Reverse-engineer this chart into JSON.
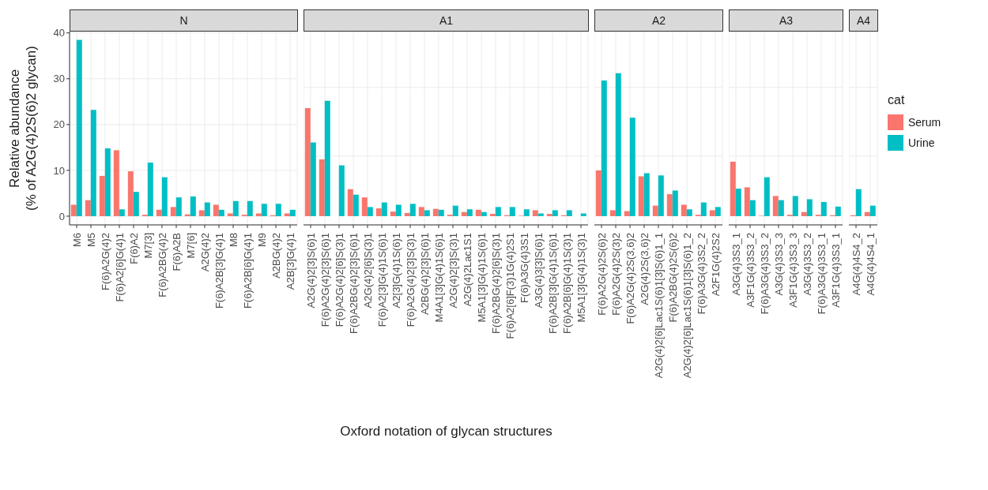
{
  "chart_data": [
    {
      "type": "bar",
      "title": "N",
      "ylabel": "Relative abundance\n(% of A2G(4)2S(6)2 glycan)",
      "categories": [
        "M6",
        "M5",
        "F(6)A2G(4)2",
        "F(6)A2[6]G(4)1",
        "F(6)A2",
        "M7[3]",
        "F(6)A2BG(4)2",
        "F(6)A2B",
        "M7[6]",
        "A2G(4)2",
        "F(6)A2B[3]G(4)1",
        "M8",
        "F(6)A2B[6]G(4)1",
        "M9",
        "A2BG(4)2",
        "A2B[3]G(4)1"
      ],
      "series": [
        {
          "color": "#f8766d",
          "values": [
            2.5,
            3.5,
            8.8,
            14.4,
            9.8,
            0.3,
            1.4,
            2.0,
            0.4,
            1.3,
            2.5,
            0.6,
            0.3,
            0.6,
            0.2,
            0.6
          ]
        },
        {
          "color": "#00bfc4",
          "values": [
            38.5,
            23.2,
            14.8,
            1.5,
            5.3,
            11.7,
            8.5,
            4.1,
            4.3,
            3.0,
            1.4,
            3.3,
            3.3,
            2.7,
            2.7,
            1.4
          ]
        }
      ],
      "ylim": [
        -1.9,
        40.3
      ],
      "yticks": [
        0,
        10,
        20,
        30,
        40
      ],
      "grid": true
    },
    {
      "type": "bar",
      "title": "A1",
      "xlabel": "Oxford notation of glycan structures",
      "categories": [
        "A2G(4)2[3]S(6)1",
        "F(6)A2G(4)2[3]S(6)1",
        "F(6)A2G(4)2[6]S(3)1",
        "F(6)A2BG(4)2[3]S(6)1",
        "A2G(4)2[6]S(3)1",
        "F(6)A2[3]G(4)1S(6)1",
        "A2[3]G(4)1S(6)1",
        "F(6)A2G(4)2[3]S(3)1",
        "A2BG(4)2[3]S(6)1",
        "M4A1[3]G(4)1S(6)1",
        "A2G(4)2[3]S(3)1",
        "A2G(4)2Lac1S1",
        "M5A1[3]G(4)1S(6)1",
        "F(6)A2BG(4)2[6]S(3)1",
        "F(6)A2[6]F(3)1G(4)2S1",
        "F(6)A3G(4)3S1",
        "A3G(4)3[3]S(6)1",
        "F(6)A2B[3]G(4)1S(6)1",
        "F(6)A2B[6]G(4)1S(3)1",
        "M5A1[3]G(4)1S(3)1"
      ],
      "series": [
        {
          "color": "#f8766d",
          "values": [
            23.6,
            12.4,
            0,
            5.9,
            4.1,
            1.7,
            1.0,
            0.7,
            2.0,
            1.6,
            0.3,
            0.9,
            1.4,
            0.5,
            0.2,
            0.1,
            1.3,
            0.5,
            0.2,
            0
          ]
        },
        {
          "color": "#00bfc4",
          "values": [
            16.1,
            25.2,
            11.1,
            4.7,
            2.0,
            3.0,
            2.5,
            2.7,
            1.3,
            1.4,
            2.3,
            1.5,
            0.9,
            2.0,
            2.0,
            1.5,
            0.6,
            1.3,
            1.3,
            0.6
          ]
        }
      ],
      "ylim": [
        -1.9,
        40.3
      ],
      "tick_labels": "x",
      "grid": true
    },
    {
      "type": "bar",
      "title": "A2",
      "categories": [
        "F(6)A2G(4)2S(6)2",
        "F(6)A2G(4)2S(3)2",
        "F(6)A2G(4)2S(3,6)2",
        "A2G(4)2S(3,6)2",
        "A2G(4)2[6]Lac1S(6)1[3]S(6)1_1",
        "F(6)A2BG(4)2S(6)2",
        "A2G(4)2[6]Lac1S(6)1[3]S(6)1_2",
        "F(6)A3G(4)3S2_2",
        "A2F1G(4)2S2"
      ],
      "series": [
        {
          "color": "#f8766d",
          "values": [
            10.0,
            1.3,
            1.1,
            8.7,
            2.3,
            4.8,
            2.5,
            0.3,
            1.3
          ]
        },
        {
          "color": "#00bfc4",
          "values": [
            29.6,
            31.2,
            21.5,
            9.4,
            8.9,
            5.6,
            1.5,
            3.0,
            2.0
          ]
        }
      ],
      "ylim": [
        -1.9,
        40.3
      ],
      "tick_labels": "x",
      "grid": true
    },
    {
      "type": "bar",
      "title": "A3",
      "categories": [
        "A3G(4)3S3_1",
        "A3F1G(4)3S3_2",
        "F(6)A3G(4)3S3_2",
        "A3G(4)3S3_3",
        "A3F1G(4)3S3_3",
        "A3G(4)3S3_2",
        "F(6)A3G(4)3S3_1",
        "A3F1G(4)3S3_1"
      ],
      "series": [
        {
          "color": "#f8766d",
          "values": [
            11.9,
            6.3,
            0.1,
            4.4,
            0.3,
            0.9,
            0.3,
            0.2
          ]
        },
        {
          "color": "#00bfc4",
          "values": [
            6.0,
            3.5,
            8.5,
            3.5,
            4.4,
            3.7,
            3.1,
            2.1
          ]
        }
      ],
      "ylim": [
        -1.9,
        40.3
      ],
      "tick_labels": "x",
      "grid": true
    },
    {
      "type": "bar",
      "title": "A4",
      "categories": [
        "A4G(4)4S4_2",
        "A4G(4)4S4_1"
      ],
      "series": [
        {
          "name": "Serum",
          "color": "#f8766d",
          "values": [
            0.2,
            0.9
          ]
        },
        {
          "name": "Urine",
          "color": "#00bfc4",
          "values": [
            5.9,
            2.3
          ]
        }
      ],
      "ylim": [
        -1.9,
        40.3
      ],
      "tick_labels": "x",
      "grid": true,
      "legend": "right",
      "legend_title": "cat"
    }
  ]
}
